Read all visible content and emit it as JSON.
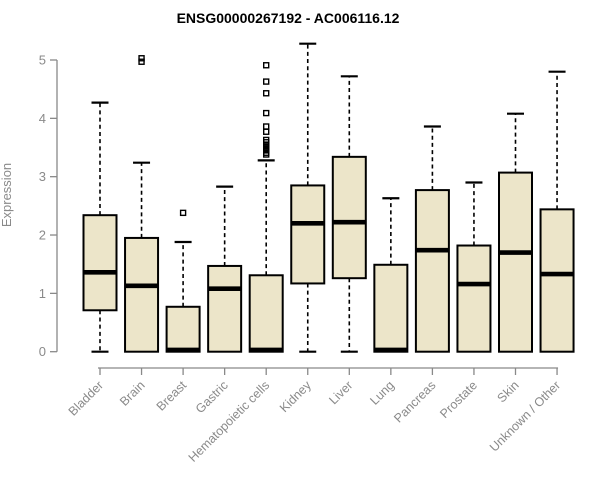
{
  "chart_data": {
    "type": "boxplot",
    "title": "ENSG00000267192 - AC006116.12",
    "ylabel": "Expression",
    "ylim": [
      0,
      5
    ],
    "yticks": [
      0,
      1,
      2,
      3,
      4,
      5
    ],
    "grid": false,
    "legend": "none",
    "categories": [
      "Bladder",
      "Brain",
      "Breast",
      "Gastric",
      "Hematopoietic cells",
      "Kidney",
      "Liver",
      "Lung",
      "Pancreas",
      "Prostate",
      "Skin",
      "Unknown / Other"
    ],
    "series": [
      {
        "name": "Bladder",
        "low": 0,
        "q1": 0.71,
        "median": 1.36,
        "q3": 2.34,
        "high": 4.27,
        "outliers": []
      },
      {
        "name": "Brain",
        "low": 0,
        "q1": 0,
        "median": 1.13,
        "q3": 1.95,
        "high": 3.24,
        "outliers": [
          4.97,
          5.03
        ]
      },
      {
        "name": "Breast",
        "low": 0,
        "q1": 0,
        "median": 0.03,
        "q3": 0.77,
        "high": 1.88,
        "outliers": [
          2.38
        ]
      },
      {
        "name": "Gastric",
        "low": 0,
        "q1": 0,
        "median": 1.08,
        "q3": 1.47,
        "high": 2.83,
        "outliers": []
      },
      {
        "name": "Hematopoietic cells",
        "low": 0,
        "q1": 0,
        "median": 0.03,
        "q3": 1.31,
        "high": 3.28,
        "outliers": [
          3.38,
          3.41,
          3.45,
          3.48,
          3.52,
          3.55,
          3.59,
          3.63,
          3.77,
          3.86,
          4.09,
          4.43,
          4.63,
          4.91
        ]
      },
      {
        "name": "Kidney",
        "low": 0,
        "q1": 1.17,
        "median": 2.2,
        "q3": 2.85,
        "high": 5.28,
        "outliers": []
      },
      {
        "name": "Liver",
        "low": 0,
        "q1": 1.26,
        "median": 2.22,
        "q3": 3.34,
        "high": 4.72,
        "outliers": []
      },
      {
        "name": "Lung",
        "low": 0,
        "q1": 0,
        "median": 0.03,
        "q3": 1.49,
        "high": 2.63,
        "outliers": []
      },
      {
        "name": "Pancreas",
        "low": 0,
        "q1": 0,
        "median": 1.74,
        "q3": 2.77,
        "high": 3.86,
        "outliers": []
      },
      {
        "name": "Prostate",
        "low": 0,
        "q1": 0,
        "median": 1.16,
        "q3": 1.82,
        "high": 2.9,
        "outliers": []
      },
      {
        "name": "Skin",
        "low": 0,
        "q1": 0,
        "median": 1.7,
        "q3": 3.07,
        "high": 4.08,
        "outliers": []
      },
      {
        "name": "Unknown / Other",
        "low": 0,
        "q1": 0,
        "median": 1.33,
        "q3": 2.44,
        "high": 4.8,
        "outliers": []
      }
    ],
    "colors": {
      "box_fill": "#ECE5C9",
      "box_stroke": "#000000",
      "median": "#000000",
      "whisker": "#000000",
      "outlier": "#000000",
      "axis": "#898989",
      "tick_text": "#8a8a8a",
      "title_text": "#000000",
      "background": "#ffffff"
    }
  }
}
